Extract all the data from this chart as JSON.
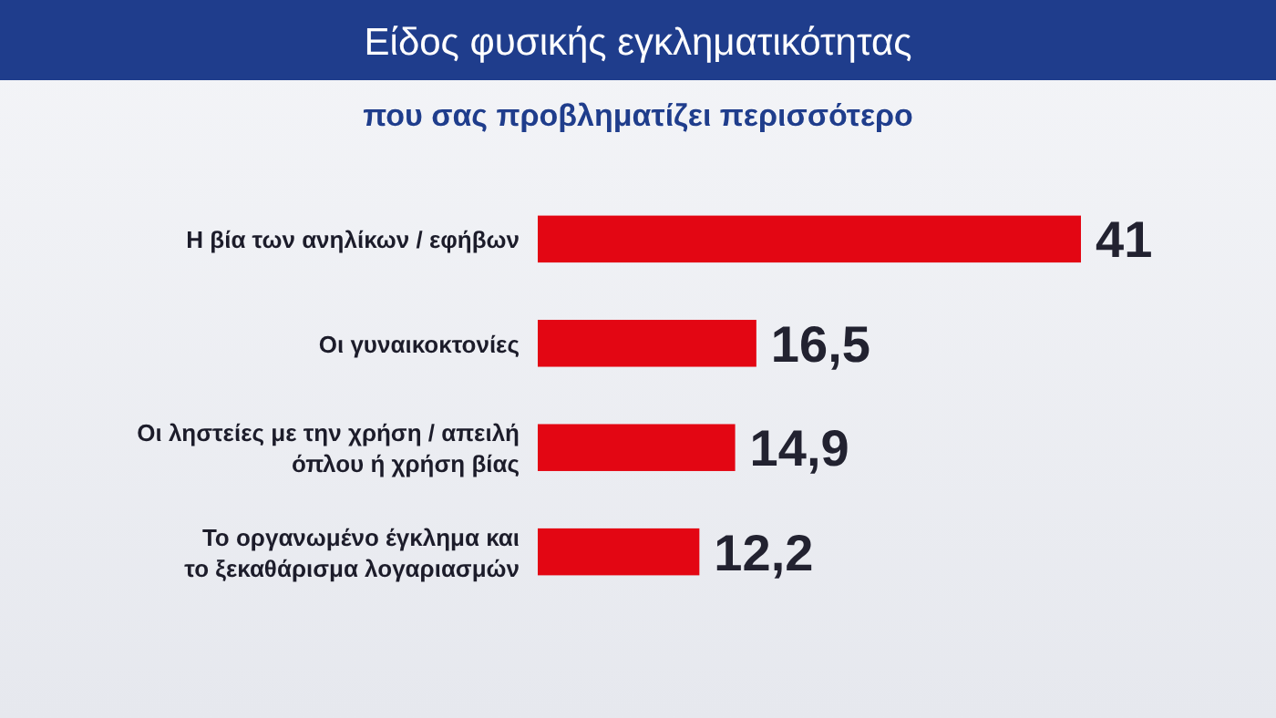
{
  "chart_data": {
    "type": "bar",
    "orientation": "horizontal",
    "title": "Είδος φυσικής εγκληματικότητας",
    "subtitle": "που σας προβληματίζει περισσότερο",
    "categories": [
      "Η βία των ανηλίκων / εφήβων",
      "Οι γυναικοκτονίες",
      "Οι ληστείες με την χρήση / απειλή\nόπλου ή χρήση βίας",
      "Το οργανωμένο έγκλημα και\nτο ξεκαθάρισμα λογαριασμών"
    ],
    "values": [
      41,
      16.5,
      14.9,
      12.2
    ],
    "value_labels": [
      "41",
      "16,5",
      "14,9",
      "12,2"
    ],
    "color": "#e30613"
  }
}
